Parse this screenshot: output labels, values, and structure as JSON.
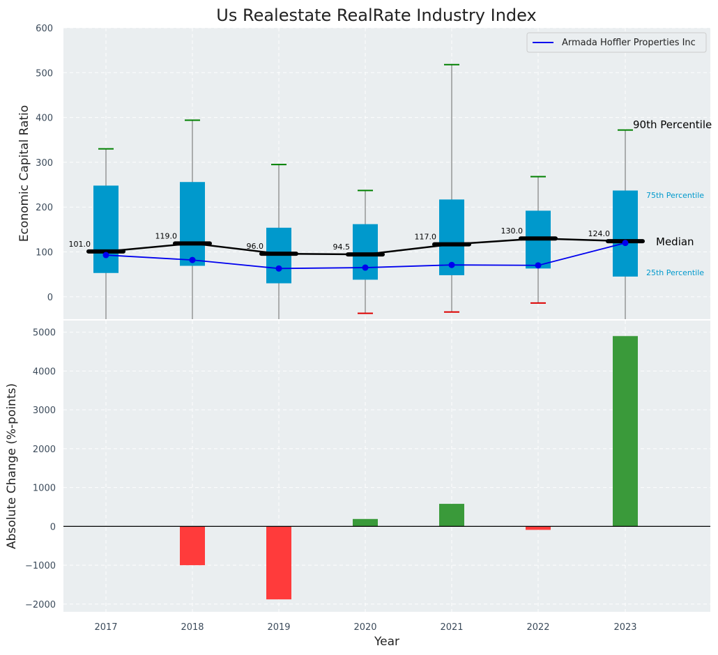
{
  "chart_data": [
    {
      "type": "box",
      "title": "Us Realestate RealRate Industry Index",
      "ylabel": "Economic Capital Ratio",
      "ylim": [
        -50,
        600
      ],
      "yticks": [
        0,
        100,
        200,
        300,
        400,
        500,
        600
      ],
      "categories": [
        "2017",
        "2018",
        "2019",
        "2020",
        "2021",
        "2022",
        "2023"
      ],
      "boxes": [
        {
          "year": "2017",
          "p10": -50,
          "q1": 53,
          "median": 101.0,
          "q3": 248,
          "p90": 330,
          "low_cap_visible": false
        },
        {
          "year": "2018",
          "p10": -50,
          "q1": 69,
          "median": 119.0,
          "q3": 256,
          "p90": 394,
          "low_cap_visible": false
        },
        {
          "year": "2019",
          "p10": -50,
          "q1": 30,
          "median": 96.0,
          "q3": 154,
          "p90": 295,
          "low_cap_visible": false
        },
        {
          "year": "2020",
          "p10": -37,
          "q1": 38,
          "median": 94.5,
          "q3": 162,
          "p90": 237,
          "low_cap_visible": true
        },
        {
          "year": "2021",
          "p10": -34,
          "q1": 48,
          "median": 117.0,
          "q3": 217,
          "p90": 518,
          "low_cap_visible": true
        },
        {
          "year": "2022",
          "p10": -14,
          "q1": 63,
          "median": 130.0,
          "q3": 192,
          "p90": 268,
          "low_cap_visible": true
        },
        {
          "year": "2023",
          "p10": -50,
          "q1": 45,
          "median": 124.0,
          "q3": 237,
          "p90": 372,
          "low_cap_visible": false
        }
      ],
      "median_labels": [
        "101.0",
        "119.0",
        "96.0",
        "94.5",
        "117.0",
        "130.0",
        "124.0"
      ],
      "series": [
        {
          "name": "Armada Hoffler Properties Inc",
          "values": [
            93,
            82,
            63,
            65,
            71,
            70,
            120
          ]
        }
      ],
      "annotations": {
        "p90": "90th Percentile",
        "p75": "75th Percentile",
        "median": "Median",
        "p25": "25th Percentile"
      },
      "legend_position": "top-right",
      "grid": true
    },
    {
      "type": "bar",
      "xlabel": "Year",
      "ylabel": "Absolute Change (%-points)",
      "ylim": [
        -2200,
        5300
      ],
      "yticks": [
        -2000,
        -1000,
        0,
        1000,
        2000,
        3000,
        4000,
        5000
      ],
      "categories": [
        "2017",
        "2018",
        "2019",
        "2020",
        "2021",
        "2022",
        "2023"
      ],
      "values": [
        null,
        -1000,
        -1880,
        190,
        580,
        -90,
        4900
      ],
      "grid": true
    }
  ],
  "tick_labels_top": [
    "0",
    "100",
    "200",
    "300",
    "400",
    "500",
    "600"
  ],
  "tick_labels_bottom": [
    "−2000",
    "−1000",
    "0",
    "1000",
    "2000",
    "3000",
    "4000",
    "5000"
  ],
  "colors": {
    "background": "#eaeef0",
    "box": "#0099cc",
    "median": "#000000",
    "series": "#0000ee",
    "whisker": "#808080",
    "cap_high": "#008000",
    "cap_low": "#dd0000",
    "bar_positive": "#3a9a3a",
    "bar_negative": "#ff3b3b",
    "annotation_box_text": "#0099cc"
  }
}
